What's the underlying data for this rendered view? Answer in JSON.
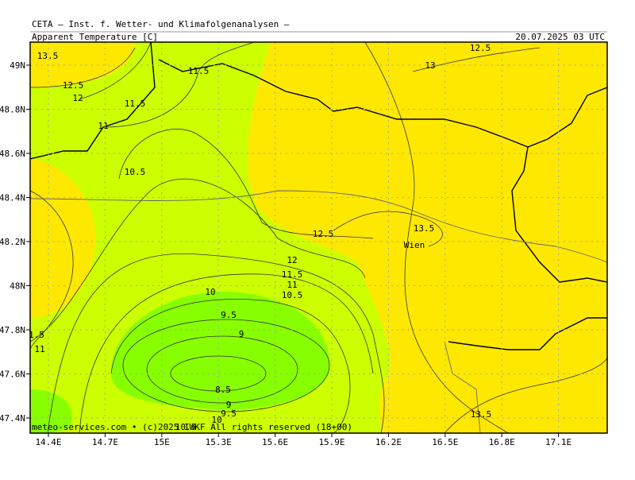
{
  "header": {
    "title": "CETA — Inst. f. Wetter- und Klimafolgenanalysen —",
    "subtitle": "Apparent Temperature [C]",
    "valid_time": "20.07.2025 03 UTC"
  },
  "map": {
    "x_labels": [
      "14.4E",
      "14.7E",
      "15E",
      "15.3E",
      "15.6E",
      "15.9E",
      "16.2E",
      "16.5E",
      "16.8E",
      "17.1E"
    ],
    "y_labels": [
      "49N",
      "48.8N",
      "48.6N",
      "48.4N",
      "48.2N",
      "48N",
      "47.8N",
      "47.6N",
      "47.4N"
    ],
    "contour_labels": [
      "13.5",
      "12.5",
      "12",
      "11",
      "11.5",
      "11.5",
      "10.5",
      "12.5",
      "13",
      "12.5",
      "13.5",
      "12",
      "11.5",
      "11",
      "10.5",
      "10",
      "9.5",
      "9",
      "8.5",
      "9",
      "9.5",
      "10",
      "10.5",
      "1.5",
      "11",
      "13.5"
    ],
    "places": [
      "Wien"
    ],
    "copyright": "meteo-services.com • (c)2025 IWKF All rights reserved (18+00)"
  }
}
